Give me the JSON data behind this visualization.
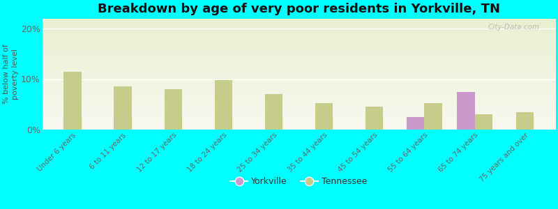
{
  "title": "Breakdown by age of very poor residents in Yorkville, TN",
  "ylabel": "% below half of\npoverty level",
  "background_color": "#00FFFF",
  "plot_bg_top": "#e8f0d0",
  "plot_bg_bottom": "#f8f8f0",
  "categories": [
    "Under 6 years",
    "6 to 11 years",
    "12 to 17 years",
    "18 to 24 years",
    "25 to 34 years",
    "35 to 44 years",
    "45 to 54 years",
    "55 to 64 years",
    "65 to 74 years",
    "75 years and over"
  ],
  "yorkville_values": [
    0,
    0,
    0,
    0,
    0,
    0,
    0,
    2.5,
    7.5,
    0
  ],
  "tennessee_values": [
    11.5,
    8.5,
    8.0,
    9.8,
    7.0,
    5.2,
    4.5,
    5.2,
    3.0,
    3.5
  ],
  "yorkville_color": "#cc99cc",
  "tennessee_color": "#c8cc8a",
  "ylim": [
    0,
    22
  ],
  "yticks": [
    0,
    10,
    20
  ],
  "ytick_labels": [
    "0%",
    "10%",
    "20%"
  ],
  "title_fontsize": 13,
  "bar_width": 0.35,
  "watermark": "City-Data.com"
}
